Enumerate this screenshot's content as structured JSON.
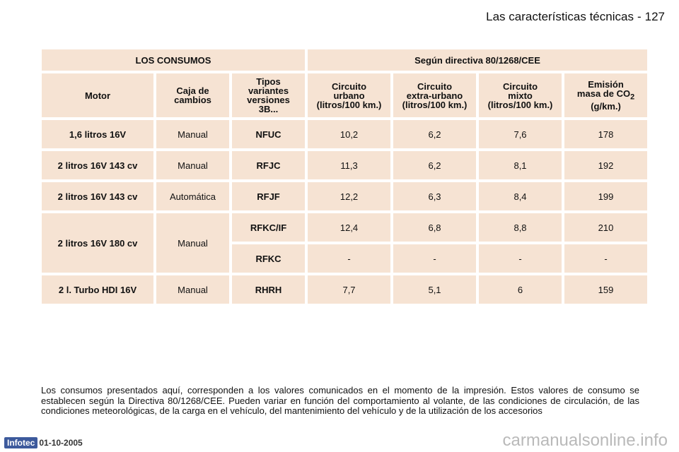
{
  "header": {
    "section": "Las características técnicas",
    "page": "127"
  },
  "table": {
    "title_left": "LOS CONSUMOS",
    "title_right": "Según directiva 80/1268/CEE",
    "columns": {
      "motor": "Motor",
      "caja": [
        "Caja de",
        "cambios"
      ],
      "tipos": [
        "Tipos",
        "variantes",
        "versiones",
        "3B..."
      ],
      "urbano": [
        "Circuito",
        "urbano",
        "(litros/100 km.)"
      ],
      "extra": [
        "Circuito",
        "extra-urbano",
        "(litros/100 km.)"
      ],
      "mixto": [
        "Circuito",
        "mixto",
        "(litros/100 km.)"
      ],
      "emision": [
        "Emisión",
        "masa de CO",
        "2",
        "(g/km.)"
      ]
    },
    "rows": [
      {
        "motor": "1,6 litros 16V",
        "caja": "Manual",
        "tipo": "NFUC",
        "urbano": "10,2",
        "extra": "6,2",
        "mixto": "7,6",
        "emision": "178"
      },
      {
        "motor": "2 litros 16V 143 cv",
        "caja": "Manual",
        "tipo": "RFJC",
        "urbano": "11,3",
        "extra": "6,2",
        "mixto": "8,1",
        "emision": "192"
      },
      {
        "motor": "2 litros 16V 143 cv",
        "caja": "Automática",
        "tipo": "RFJF",
        "urbano": "12,2",
        "extra": "6,3",
        "mixto": "8,4",
        "emision": "199"
      },
      {
        "motor": "2 litros 16V 180 cv",
        "caja": "Manual",
        "tipo": "RFKC/IF",
        "urbano": "12,4",
        "extra": "6,8",
        "mixto": "8,8",
        "emision": "210"
      },
      {
        "tipo": "RFKC",
        "urbano": "-",
        "extra": "-",
        "mixto": "-",
        "emision": "-"
      },
      {
        "motor": "2 l. Turbo HDI 16V",
        "caja": "Manual",
        "tipo": "RHRH",
        "urbano": "7,7",
        "extra": "5,1",
        "mixto": "6",
        "emision": "159"
      }
    ]
  },
  "footer": {
    "note": "Los consumos presentados aquí, corresponden a los valores comunicados en el momento de la impresión. Estos valores de consumo se establecen según la Directiva 80/1268/CEE. Pueden variar en función del comportamiento al volante, de las condiciones de circulación, de las condiciones meteorológicas, de la carga en el vehículo, del mantenimiento del vehículo y de la utilización de los accesorios",
    "logo": "Infotec",
    "date": "01-10-2005",
    "watermark": "carmanualsonline.info"
  },
  "colors": {
    "cell_bg": "#f6e3d3",
    "logo_bg": "#3d5a9c"
  }
}
